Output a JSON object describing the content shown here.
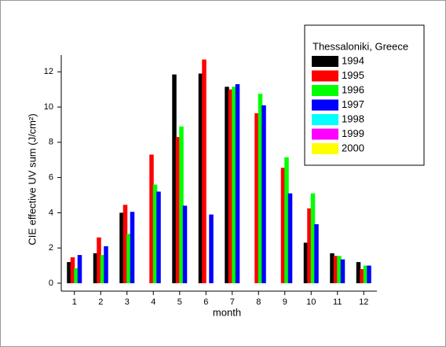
{
  "chart_data": {
    "type": "bar",
    "x_label": "month",
    "y_label": "CIE effective UV sum (J/cm²)",
    "legend_title": "Thessaloniki, Greece",
    "legend": "upper right",
    "categories": [
      "1",
      "2",
      "3",
      "4",
      "5",
      "6",
      "7",
      "8",
      "9",
      "10",
      "11",
      "12"
    ],
    "ylim": [
      -0.45,
      12.95
    ],
    "yticks": [
      0,
      2,
      4,
      6,
      8,
      10,
      12
    ],
    "series": [
      {
        "name": "1994",
        "color": "#000000",
        "values": [
          1.2,
          1.7,
          4.0,
          null,
          11.85,
          11.9,
          11.15,
          null,
          null,
          2.3,
          1.7,
          1.2
        ]
      },
      {
        "name": "1995",
        "color": "#ff0000",
        "values": [
          1.47,
          2.6,
          4.45,
          7.3,
          8.3,
          12.7,
          11.0,
          9.65,
          6.55,
          4.25,
          1.55,
          0.8
        ]
      },
      {
        "name": "1996",
        "color": "#00ff00",
        "values": [
          0.85,
          1.6,
          2.8,
          5.6,
          8.9,
          null,
          11.15,
          10.75,
          7.15,
          5.1,
          1.55,
          1.0
        ]
      },
      {
        "name": "1997",
        "color": "#0000ff",
        "values": [
          1.6,
          2.1,
          4.05,
          5.2,
          4.4,
          3.9,
          11.3,
          10.1,
          5.1,
          3.35,
          1.35,
          1.0
        ]
      },
      {
        "name": "1998",
        "color": "#00ffff",
        "values": [
          null,
          null,
          null,
          null,
          null,
          null,
          null,
          null,
          null,
          null,
          null,
          null
        ]
      },
      {
        "name": "1999",
        "color": "#ff00ff",
        "values": [
          null,
          null,
          null,
          null,
          null,
          null,
          null,
          null,
          null,
          null,
          null,
          null
        ]
      },
      {
        "name": "2000",
        "color": "#ffff00",
        "values": [
          null,
          null,
          null,
          null,
          null,
          null,
          null,
          null,
          null,
          null,
          null,
          null
        ]
      }
    ]
  }
}
